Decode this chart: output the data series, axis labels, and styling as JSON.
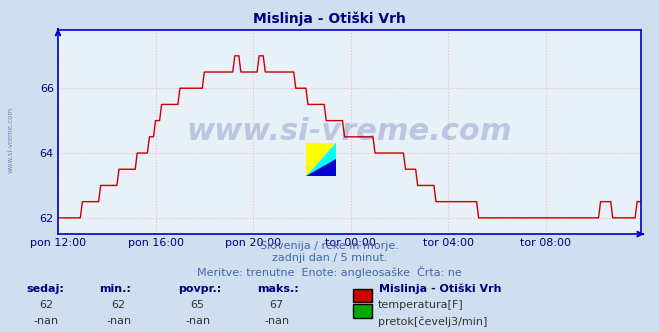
{
  "title": "Mislinja - Otiški Vrh",
  "bg_color": "#d0dff0",
  "plot_bg_color": "#e8f0f8",
  "line_color": "#cc0000",
  "line_width": 1.0,
  "x_min": 0,
  "x_max": 287,
  "y_min": 61.5,
  "y_max": 67.8,
  "yticks": [
    62,
    64,
    66
  ],
  "xtick_positions": [
    0,
    48,
    96,
    144,
    192,
    240
  ],
  "xtick_labels": [
    "pon 12:00",
    "pon 16:00",
    "pon 20:00",
    "tor 00:00",
    "tor 04:00",
    "tor 08:00"
  ],
  "grid_color": "#f0c0c0",
  "grid_color_v": "#f0c0c0",
  "title_color": "#000080",
  "title_fontsize": 10,
  "axis_label_color": "#000080",
  "axis_label_fontsize": 8,
  "watermark_text": "www.si-vreme.com",
  "watermark_color": "#000080",
  "watermark_alpha": 0.18,
  "watermark_fontsize": 22,
  "side_watermark_text": "www.si-vreme.com",
  "side_watermark_color": "#4466aa",
  "side_watermark_alpha": 0.7,
  "info_text1": "Slovenija / reke in morje.",
  "info_text2": "zadnji dan / 5 minut.",
  "info_text3": "Meritve: trenutne  Enote: angleosaške  Črta: ne",
  "info_color": "#4466aa",
  "info_fontsize": 8,
  "stats_labels": [
    "sedaj:",
    "min.:",
    "povpr.:",
    "maks.:"
  ],
  "stats_values_temp": [
    "62",
    "62",
    "65",
    "67"
  ],
  "stats_values_flow": [
    "-nan",
    "-nan",
    "-nan",
    "-nan"
  ],
  "legend_title": "Mislinja - Otiški Vrh",
  "legend_temp": "temperatura[F]",
  "legend_flow": "pretok[čevelj3/min]",
  "temp_color": "#cc0000",
  "flow_color": "#00aa00",
  "border_color": "#0000cc",
  "spine_color": "#0000cc",
  "left_margin_color": "#c8d8ec"
}
